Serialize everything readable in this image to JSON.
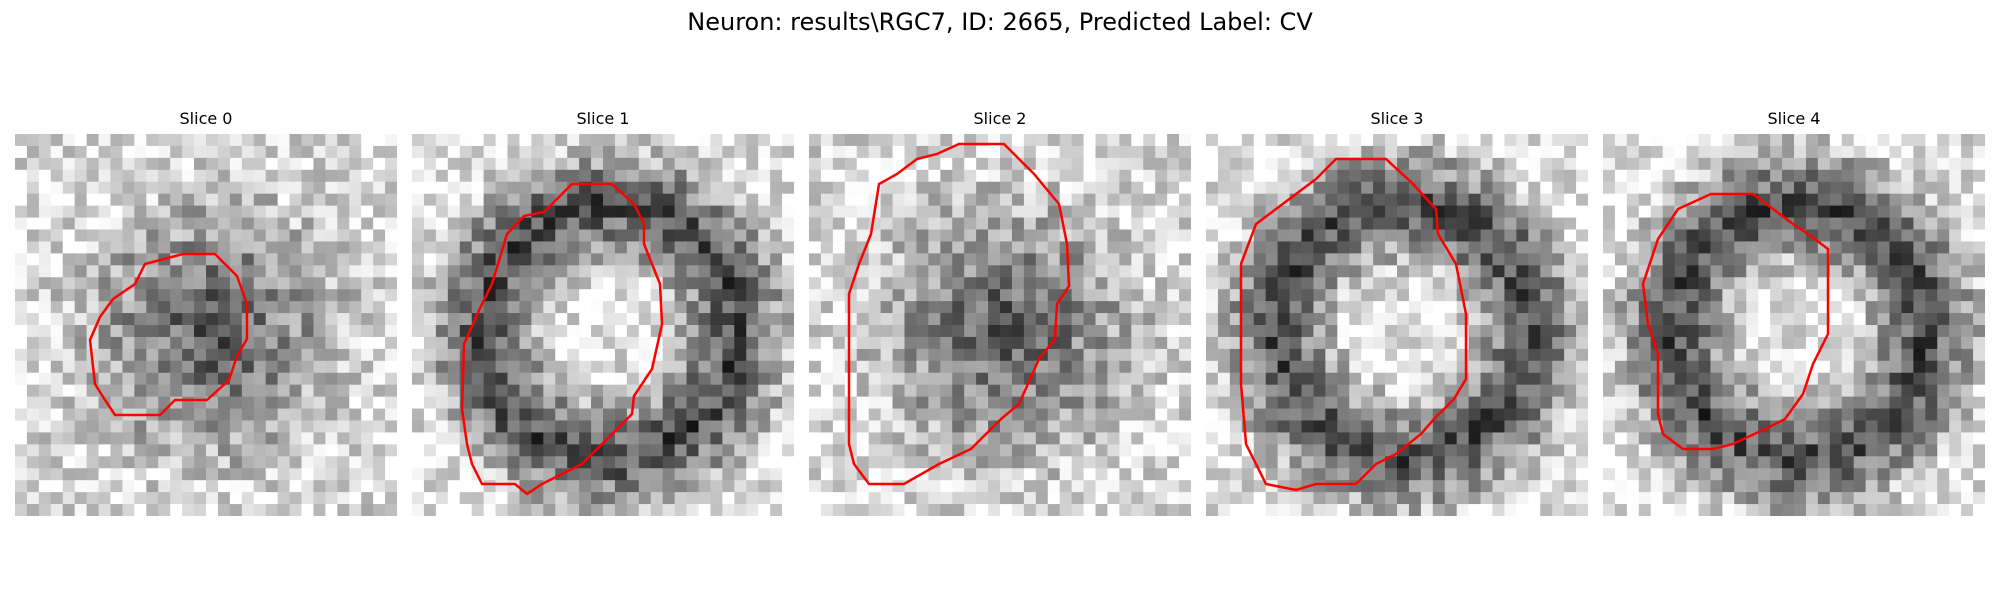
{
  "figure": {
    "title": "Neuron: results\\RGC7, ID: 2665, Predicted Label: CV"
  },
  "panels": [
    {
      "title": "Slice 0",
      "seed": 11,
      "dark_center": true
    },
    {
      "title": "Slice 1",
      "seed": 23,
      "dark_center": false
    },
    {
      "title": "Slice 2",
      "seed": 37,
      "dark_center": true
    },
    {
      "title": "Slice 3",
      "seed": 41,
      "dark_center": false
    },
    {
      "title": "Slice 4",
      "seed": 59,
      "dark_center": false
    }
  ],
  "colors": {
    "contour": "#ff0000",
    "background": "#ffffff"
  },
  "colormap": "gray"
}
